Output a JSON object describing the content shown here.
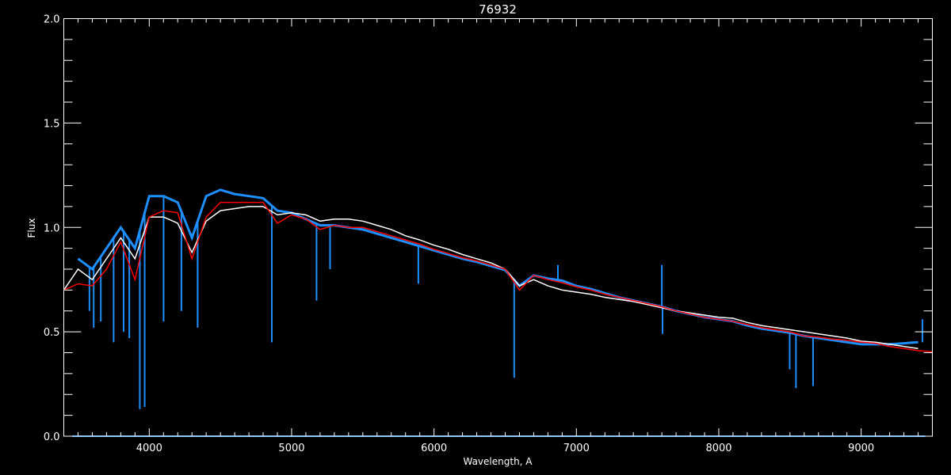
{
  "chart_data": {
    "type": "line",
    "title": "76932",
    "xlabel": "Wavelength, A",
    "ylabel": "Flux",
    "xlim": [
      3400,
      9500
    ],
    "ylim": [
      0.0,
      2.0
    ],
    "xticks": [
      4000,
      5000,
      6000,
      7000,
      8000,
      9000
    ],
    "xtick_labels": [
      "4000",
      "5000",
      "6000",
      "7000",
      "8000",
      "9000"
    ],
    "yticks": [
      0.0,
      0.5,
      1.0,
      1.5,
      2.0
    ],
    "ytick_labels": [
      "0.0",
      "0.5",
      "1.0",
      "1.5",
      "2.0"
    ],
    "x_minor_step": 100,
    "y_minor_step": 0.1,
    "grid": false,
    "background": "#000000",
    "x": [
      3400,
      3500,
      3600,
      3700,
      3800,
      3900,
      4000,
      4100,
      4200,
      4300,
      4400,
      4500,
      4600,
      4700,
      4800,
      4900,
      5000,
      5100,
      5200,
      5300,
      5400,
      5500,
      5600,
      5700,
      5800,
      5900,
      6000,
      6100,
      6200,
      6300,
      6400,
      6500,
      6600,
      6700,
      6800,
      6900,
      7000,
      7100,
      7200,
      7300,
      7400,
      7500,
      7600,
      7700,
      7800,
      7900,
      8000,
      8100,
      8200,
      8300,
      8400,
      8500,
      8600,
      8700,
      8800,
      8900,
      9000,
      9100,
      9200,
      9300,
      9400,
      9500
    ],
    "series": [
      {
        "color": "#1E8FFF",
        "values": [
          null,
          0.85,
          0.8,
          0.9,
          1.0,
          0.9,
          1.15,
          1.15,
          1.12,
          0.95,
          1.15,
          1.18,
          1.16,
          1.15,
          1.14,
          1.08,
          1.07,
          1.04,
          1.01,
          1.01,
          1.0,
          0.99,
          0.97,
          0.95,
          0.93,
          0.91,
          0.89,
          0.87,
          0.85,
          0.835,
          0.815,
          0.795,
          0.72,
          0.77,
          0.755,
          0.745,
          0.72,
          0.705,
          0.685,
          0.665,
          0.65,
          0.635,
          0.62,
          0.6,
          0.585,
          0.57,
          0.56,
          0.55,
          0.53,
          0.515,
          0.505,
          0.495,
          0.48,
          0.47,
          0.46,
          0.45,
          0.44,
          0.44,
          0.44,
          0.445,
          0.45,
          null
        ],
        "lines": [
          [
            3580,
            0.6
          ],
          [
            3610,
            0.52
          ],
          [
            3660,
            0.55
          ],
          [
            3750,
            0.45
          ],
          [
            3820,
            0.5
          ],
          [
            3860,
            0.47
          ],
          [
            3934,
            0.13
          ],
          [
            3968,
            0.14
          ],
          [
            4101,
            0.55
          ],
          [
            4226,
            0.6
          ],
          [
            4340,
            0.52
          ],
          [
            4861,
            0.45
          ],
          [
            5175,
            0.65
          ],
          [
            5270,
            0.8
          ],
          [
            5890,
            0.73
          ],
          [
            6563,
            0.28
          ],
          [
            6870,
            0.82
          ],
          [
            7605,
            0.49
          ],
          [
            7600,
            0.82
          ],
          [
            8498,
            0.32
          ],
          [
            8542,
            0.23
          ],
          [
            8662,
            0.24
          ],
          [
            9430,
            0.56
          ]
        ]
      },
      {
        "color": "#FFFFFF",
        "values": [
          0.7,
          0.8,
          0.75,
          0.85,
          0.95,
          0.85,
          1.05,
          1.05,
          1.02,
          0.88,
          1.03,
          1.08,
          1.09,
          1.1,
          1.1,
          1.06,
          1.07,
          1.06,
          1.03,
          1.04,
          1.04,
          1.03,
          1.01,
          0.99,
          0.96,
          0.94,
          0.915,
          0.895,
          0.87,
          0.85,
          0.83,
          0.8,
          0.72,
          0.75,
          0.72,
          0.7,
          0.69,
          0.68,
          0.665,
          0.655,
          0.645,
          0.63,
          0.615,
          0.6,
          0.59,
          0.58,
          0.57,
          0.565,
          0.545,
          0.53,
          0.52,
          0.51,
          0.5,
          0.49,
          0.48,
          0.47,
          0.455,
          0.45,
          0.44,
          0.43,
          0.42,
          null
        ]
      },
      {
        "color": "#FF0000",
        "values": [
          0.7,
          0.73,
          0.72,
          0.8,
          0.93,
          0.75,
          1.05,
          1.08,
          1.07,
          0.85,
          1.05,
          1.12,
          1.12,
          1.12,
          1.12,
          1.02,
          1.06,
          1.04,
          0.99,
          1.01,
          1.0,
          1.0,
          0.98,
          0.96,
          0.94,
          0.92,
          0.895,
          0.875,
          0.855,
          0.84,
          0.82,
          0.8,
          0.7,
          0.77,
          0.75,
          0.735,
          0.715,
          0.7,
          0.68,
          0.665,
          0.65,
          0.635,
          0.62,
          0.6,
          0.585,
          0.57,
          0.56,
          0.55,
          0.535,
          0.52,
          0.51,
          0.5,
          0.48,
          0.475,
          0.465,
          0.46,
          0.45,
          0.445,
          0.43,
          0.42,
          0.41,
          0.405
        ]
      },
      {
        "color": "#1E8FFF",
        "range": [
          3460,
          9450
        ],
        "constant": 0.0
      }
    ]
  }
}
